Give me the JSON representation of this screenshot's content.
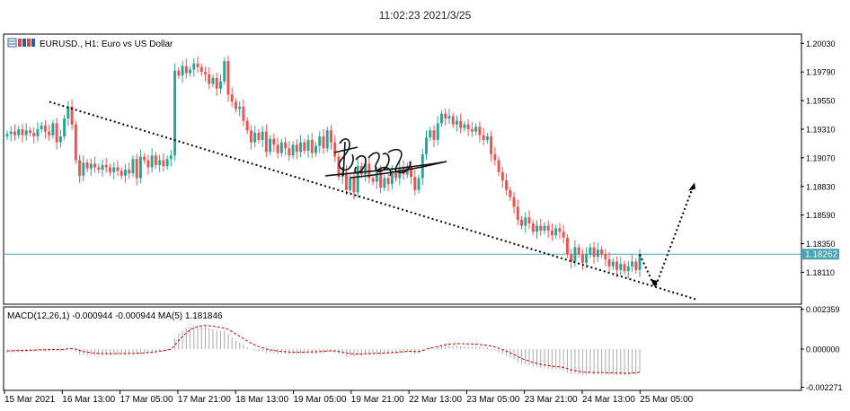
{
  "timestamp": "11:02:23 2021/3/25",
  "chart_data": [
    {
      "type": "candlestick",
      "title": "EURUSD., H1:  Euro vs US Dollar",
      "icon": "chart-window-icon",
      "colors": {
        "bull": "#26a69a",
        "bear": "#ef5350",
        "wick": "#555555",
        "current_price_line": "#4aa3b0",
        "trendline": "#000000"
      },
      "ylim": [
        1.1785,
        1.201
      ],
      "yticks": [
        "1.20030",
        "1.19790",
        "1.19550",
        "1.19310",
        "1.19070",
        "1.18830",
        "1.18590",
        "1.18350",
        "1.18110"
      ],
      "current_price": "1.18262",
      "xticks": [
        "15 Mar 2021",
        "16 Mar 13:00",
        "17 Mar 05:00",
        "17 Mar 21:00",
        "18 Mar 13:00",
        "19 Mar 05:00",
        "19 Mar 21:00",
        "22 Mar 13:00",
        "23 Mar 05:00",
        "23 Mar 21:00",
        "24 Mar 13:00",
        "25 Mar 05:00"
      ],
      "close_path": [
        1.1927,
        1.1929,
        1.1926,
        1.1931,
        1.1926,
        1.193,
        1.1928,
        1.1925,
        1.1931,
        1.1934,
        1.1929,
        1.1926,
        1.1936,
        1.192,
        1.1925,
        1.194,
        1.195,
        1.1935,
        1.1905,
        1.1892,
        1.1903,
        1.1898,
        1.1902,
        1.1899,
        1.1897,
        1.1901,
        1.1899,
        1.1895,
        1.1899,
        1.1896,
        1.1892,
        1.1897,
        1.1894,
        1.1906,
        1.189,
        1.1908,
        1.1905,
        1.1899,
        1.1909,
        1.1901,
        1.1905,
        1.19,
        1.1906,
        1.1909,
        1.198,
        1.1976,
        1.1984,
        1.1978,
        1.1981,
        1.1986,
        1.1983,
        1.1979,
        1.1977,
        1.1969,
        1.1974,
        1.1965,
        1.1971,
        1.1988,
        1.196,
        1.1954,
        1.1948,
        1.195,
        1.1938,
        1.193,
        1.192,
        1.1928,
        1.1922,
        1.1929,
        1.1912,
        1.1923,
        1.1918,
        1.1911,
        1.192,
        1.1915,
        1.1909,
        1.1918,
        1.1912,
        1.192,
        1.1913,
        1.1922,
        1.1911,
        1.1917,
        1.1925,
        1.1915,
        1.193,
        1.192,
        1.1908,
        1.1891,
        1.1895,
        1.188,
        1.1891,
        1.1878,
        1.19,
        1.1893,
        1.1902,
        1.189,
        1.1887,
        1.1895,
        1.1882,
        1.189,
        1.1885,
        1.1895,
        1.189,
        1.1899,
        1.1893,
        1.19,
        1.1891,
        1.188,
        1.189,
        1.191,
        1.1924,
        1.193,
        1.1922,
        1.1936,
        1.1944,
        1.194,
        1.1942,
        1.1935,
        1.1938,
        1.1932,
        1.1935,
        1.1931,
        1.1929,
        1.1933,
        1.1926,
        1.1922,
        1.1925,
        1.191,
        1.1905,
        1.1895,
        1.1888,
        1.188,
        1.1874,
        1.1866,
        1.1855,
        1.185,
        1.1857,
        1.1852,
        1.1845,
        1.185,
        1.1846,
        1.185,
        1.1846,
        1.1842,
        1.1848,
        1.1845,
        1.184,
        1.1826,
        1.182,
        1.1832,
        1.1826,
        1.1819,
        1.1826,
        1.1832,
        1.1824,
        1.183,
        1.1826,
        1.1822,
        1.1816,
        1.182,
        1.1813,
        1.1818,
        1.1812,
        1.1816,
        1.182,
        1.1813,
        1.1826
      ],
      "trendline": {
        "from": {
          "x": "16 Mar 2021 ~08:00",
          "y": 1.1954
        },
        "to": {
          "x": "25 Mar 2021 ~22:00",
          "y": 1.1788
        },
        "style": "dotted"
      },
      "annotation_arrows": [
        {
          "from": {
            "x": "25 Mar 2021 05:00",
            "y": 1.1826
          },
          "to": {
            "x": "25 Mar 2021 ~10:00",
            "y": 1.18
          },
          "style": "dotted"
        },
        {
          "from": {
            "x": "25 Mar 2021 ~10:00",
            "y": 1.18
          },
          "to": {
            "x": "25 Mar 2021 ~22:00",
            "y": 1.1884
          },
          "style": "dotted"
        }
      ],
      "watermark": "handwritten signature"
    },
    {
      "type": "bar",
      "label": "MACD(12,26,1) -0.000944 -0.000944 MA(5) 1.181846",
      "ylim": [
        -0.0024,
        0.00245
      ],
      "yticks": [
        "0.002359",
        "0.000000",
        "-0.002271"
      ],
      "histogram_color": "#aaaaaa",
      "signal_color": "#cc0000",
      "macd_values": [
        -0.00022,
        -0.0002,
        -0.00018,
        -0.00019,
        -0.00018,
        -0.00018,
        -0.00016,
        -0.00016,
        -0.00015,
        -0.00013,
        -0.00013,
        -0.00012,
        -0.00012,
        -0.00014,
        -0.00014,
        -0.0001,
        -2e-05,
        -4e-05,
        -0.00018,
        -0.00033,
        -0.00036,
        -0.00038,
        -0.00038,
        -0.00038,
        -0.00039,
        -0.00038,
        -0.00038,
        -0.00038,
        -0.00037,
        -0.00037,
        -0.00036,
        -0.00037,
        -0.00036,
        -0.00034,
        -0.00035,
        -0.00033,
        -0.0003,
        -0.00028,
        -0.00025,
        -0.00023,
        -0.00018,
        -0.00015,
        -9e-05,
        -4e-05,
        0.0006,
        0.0009,
        0.0011,
        0.00125,
        0.00135,
        0.00138,
        0.00138,
        0.00136,
        0.00133,
        0.00125,
        0.0012,
        0.00112,
        0.00108,
        0.0011,
        0.0009,
        0.0007,
        0.00052,
        0.0004,
        0.00026,
        0.00012,
        0.0,
        -8e-05,
        -0.00014,
        -0.00015,
        -0.00024,
        -0.00024,
        -0.00026,
        -0.0003,
        -0.00028,
        -0.00029,
        -0.00032,
        -0.0003,
        -0.00031,
        -0.00028,
        -0.00029,
        -0.00025,
        -0.00027,
        -0.00026,
        -0.00022,
        -0.00024,
        -0.00018,
        -0.00018,
        -0.00022,
        -0.00033,
        -0.00035,
        -0.00044,
        -0.0004,
        -0.00047,
        -0.0004,
        -0.0004,
        -0.00034,
        -0.00036,
        -0.00037,
        -0.00032,
        -0.00035,
        -0.00032,
        -0.00032,
        -0.00028,
        -0.00028,
        -0.00024,
        -0.00024,
        -0.0002,
        -0.00022,
        -0.0003,
        -0.00024,
        -0.0001,
        2e-05,
        0.0001,
        6e-05,
        0.00016,
        0.00022,
        0.00024,
        0.00026,
        0.00022,
        0.00024,
        0.0002,
        0.0002,
        0.00018,
        0.00016,
        0.00018,
        0.00012,
        8e-05,
        0.0001,
        -2e-05,
        -8e-05,
        -0.0002,
        -0.0003,
        -0.0004,
        -0.0005,
        -0.00062,
        -0.00078,
        -0.00088,
        -0.0009,
        -0.00096,
        -0.00105,
        -0.00106,
        -0.00112,
        -0.00112,
        -0.00116,
        -0.0012,
        -0.00118,
        -0.0012,
        -0.00125,
        -0.0014,
        -0.0015,
        -0.00146,
        -0.0015,
        -0.00155,
        -0.00152,
        -0.00148,
        -0.00152,
        -0.0015,
        -0.0015,
        -0.00152,
        -0.00155,
        -0.00152,
        -0.00155,
        -0.00154,
        -0.00156,
        -0.00155,
        -0.0015,
        -0.00152,
        -0.0014
      ]
    }
  ]
}
